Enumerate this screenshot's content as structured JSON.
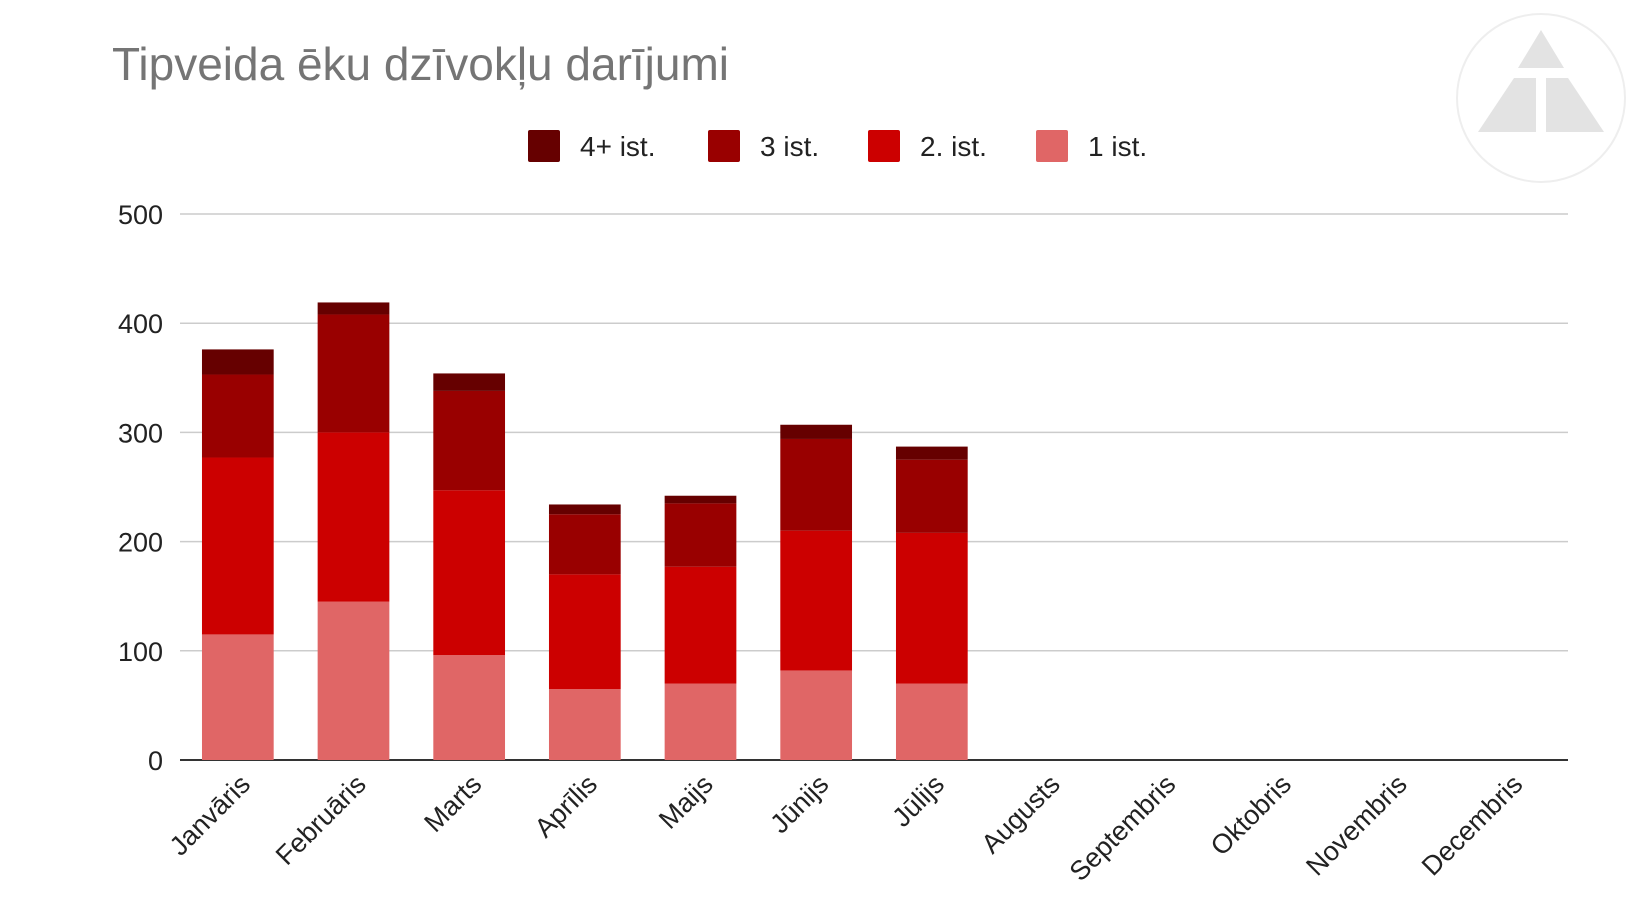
{
  "chart_data": {
    "type": "bar",
    "stacked": true,
    "title": "Tipveida ēku dzīvokļu darījumi",
    "xlabel": "",
    "ylabel": "",
    "ylim": [
      0,
      500
    ],
    "yticks": [
      0,
      100,
      200,
      300,
      400,
      500
    ],
    "grid": true,
    "legend_position": "top",
    "categories": [
      "Janvāris",
      "Februāris",
      "Marts",
      "Aprīlis",
      "Maijs",
      "Jūnijs",
      "Jūlijs",
      "Augusts",
      "Septembris",
      "Oktobris",
      "Novembris",
      "Decembris"
    ],
    "series": [
      {
        "name": "1 ist.",
        "color": "#e06666",
        "values": [
          115,
          145,
          96,
          65,
          70,
          82,
          70,
          0,
          0,
          0,
          0,
          0
        ]
      },
      {
        "name": "2. ist.",
        "color": "#cc0000",
        "values": [
          162,
          155,
          151,
          105,
          107,
          128,
          138,
          0,
          0,
          0,
          0,
          0
        ]
      },
      {
        "name": "3 ist.",
        "color": "#990000",
        "values": [
          76,
          108,
          91,
          55,
          58,
          84,
          67,
          0,
          0,
          0,
          0,
          0
        ]
      },
      {
        "name": "4+ ist.",
        "color": "#660000",
        "values": [
          23,
          11,
          16,
          9,
          7,
          13,
          12,
          0,
          0,
          0,
          0,
          0
        ]
      }
    ],
    "legend_order": [
      "4+ ist.",
      "3 ist.",
      "2. ist.",
      "1 ist."
    ]
  },
  "logo": {
    "name": "company-logo"
  }
}
